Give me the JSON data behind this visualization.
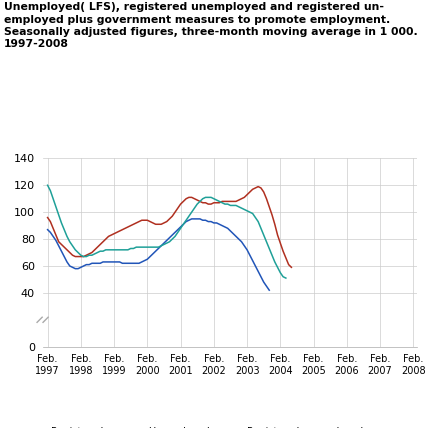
{
  "title_lines": [
    "Unemployed( LFS), registered unemployed and registered un-",
    "employed plus government measures to promote employment.",
    "Seasonally adjusted figures, three-month moving average in 1 000.",
    "1997-2008"
  ],
  "ylim": [
    0,
    140
  ],
  "yticks": [
    0,
    40,
    60,
    80,
    100,
    120,
    140
  ],
  "xtick_labels": [
    "Feb.\n1997",
    "Feb.\n1998",
    "Feb.\n1999",
    "Feb.\n2000",
    "Feb.\n2001",
    "Feb.\n2002",
    "Feb.\n2003",
    "Feb.\n2004",
    "Feb.\n2005",
    "Feb.\n2006",
    "Feb.\n2007",
    "Feb.\n2008"
  ],
  "colors": {
    "registered": "#2155b8",
    "lfs": "#b03020",
    "gov": "#1fa098"
  },
  "legend": [
    {
      "label": "Registered\nunemployed",
      "color": "#2155b8"
    },
    {
      "label": "Unemployed\n(LFS)",
      "color": "#b03020"
    },
    {
      "label": "Registered unemployed\n+ government measures",
      "color": "#1fa098"
    }
  ],
  "registered": [
    87,
    85,
    82,
    79,
    75,
    71,
    67,
    63,
    60,
    59,
    58,
    58,
    59,
    60,
    61,
    61,
    62,
    62,
    62,
    62,
    63,
    63,
    63,
    63,
    63,
    63,
    63,
    62,
    62,
    62,
    62,
    62,
    62,
    62,
    63,
    64,
    65,
    67,
    69,
    71,
    73,
    75,
    77,
    79,
    81,
    83,
    85,
    87,
    89,
    91,
    93,
    94,
    95,
    95,
    95,
    95,
    94,
    94,
    93,
    93,
    92,
    92,
    91,
    90,
    89,
    88,
    86,
    84,
    82,
    80,
    78,
    75,
    72,
    68,
    64,
    60,
    56,
    52,
    48,
    45,
    42
  ],
  "lfs": [
    96,
    93,
    88,
    83,
    78,
    76,
    74,
    72,
    70,
    68,
    67,
    67,
    67,
    67,
    68,
    69,
    70,
    72,
    74,
    76,
    78,
    80,
    82,
    83,
    84,
    85,
    86,
    87,
    88,
    89,
    90,
    91,
    92,
    93,
    94,
    94,
    94,
    93,
    92,
    91,
    91,
    91,
    92,
    93,
    95,
    97,
    100,
    103,
    106,
    108,
    110,
    111,
    111,
    110,
    109,
    108,
    107,
    107,
    106,
    106,
    107,
    107,
    107,
    108,
    108,
    108,
    108,
    108,
    108,
    109,
    110,
    111,
    113,
    115,
    117,
    118,
    119,
    118,
    115,
    110,
    104,
    98,
    91,
    83,
    77,
    71,
    66,
    61,
    59
  ],
  "gov": [
    120,
    116,
    110,
    104,
    98,
    92,
    87,
    82,
    78,
    75,
    72,
    70,
    68,
    67,
    67,
    68,
    68,
    69,
    70,
    71,
    71,
    72,
    72,
    72,
    72,
    72,
    72,
    72,
    72,
    72,
    73,
    73,
    74,
    74,
    74,
    74,
    74,
    74,
    74,
    74,
    74,
    75,
    76,
    77,
    78,
    80,
    82,
    85,
    88,
    91,
    94,
    97,
    100,
    103,
    106,
    108,
    110,
    111,
    111,
    111,
    110,
    109,
    108,
    107,
    106,
    106,
    105,
    105,
    105,
    104,
    103,
    102,
    101,
    100,
    99,
    96,
    93,
    88,
    83,
    78,
    73,
    68,
    63,
    59,
    55,
    52,
    51
  ]
}
